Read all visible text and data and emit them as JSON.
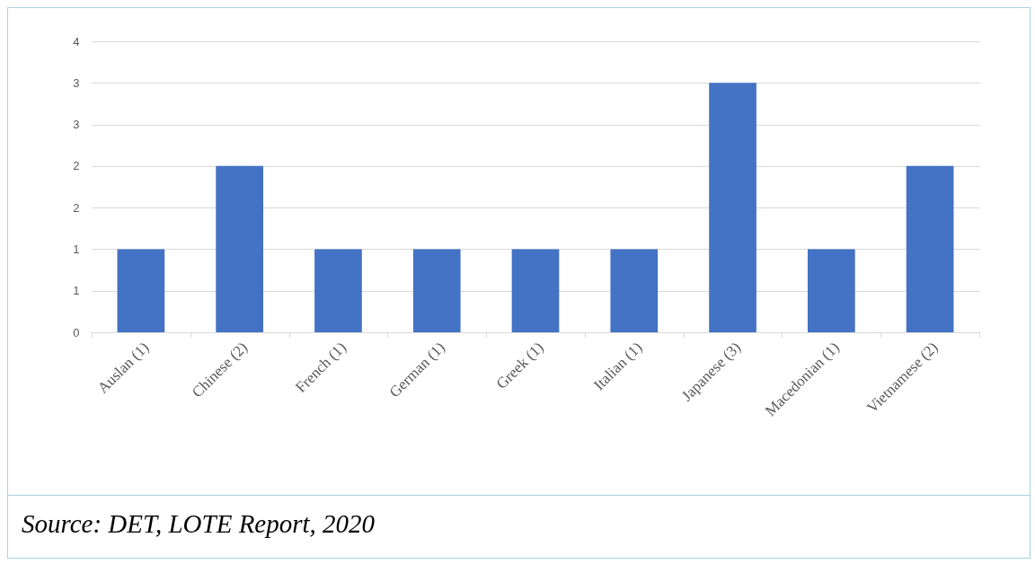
{
  "chart_data": {
    "type": "bar",
    "categories": [
      "Auslan (1)",
      "Chinese (2)",
      "French (1)",
      "German (1)",
      "Greek (1)",
      "Italian (1)",
      "Japanese (3)",
      "Macedonian (1)",
      "Vietnamese (2)"
    ],
    "values": [
      1,
      2,
      1,
      1,
      1,
      1,
      3,
      1,
      2
    ],
    "color": "#4472c4",
    "ylim": [
      0,
      3.5
    ],
    "yticks": [
      0,
      {
        "value": 0.5,
        "label": "1"
      },
      1,
      {
        "value": 1.5,
        "label": "2"
      },
      2,
      {
        "value": 2.5,
        "label": "3"
      },
      3,
      {
        "value": 3.5,
        "label": "4"
      }
    ],
    "grid": "y",
    "annotations": [
      "Source: DET, LOTE Report, 2020"
    ]
  }
}
